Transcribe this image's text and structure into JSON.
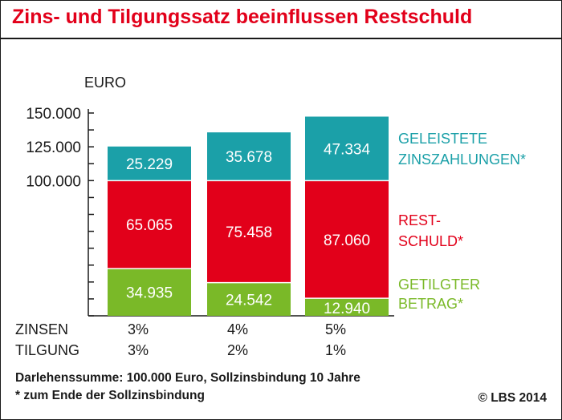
{
  "title": "Zins- und Tilgungssatz beeinflussen Restschuld",
  "footnotes": [
    "Darlehenssumme: 100.000 Euro, Sollzinsbindung 10 Jahre",
    "* zum Ende der Sollzinsbindung"
  ],
  "copyright": "© LBS 2014",
  "colors": {
    "title": "#e2001a",
    "teal": "#1ba0a8",
    "red": "#e2001a",
    "green": "#7ab928",
    "text": "#1a1a1a"
  },
  "chart_data": {
    "type": "bar",
    "stacked": true,
    "ylabel": "EURO",
    "ylim": [
      0,
      150000
    ],
    "yticks": [
      {
        "value": 150000,
        "label": "150.000"
      },
      {
        "value": 125000,
        "label": "125.000"
      },
      {
        "value": 100000,
        "label": "100.000"
      }
    ],
    "row_labels": [
      "ZINSEN",
      "TILGUNG"
    ],
    "categories": [
      {
        "zinsen": "3%",
        "tilgung": "3%"
      },
      {
        "zinsen": "4%",
        "tilgung": "2%"
      },
      {
        "zinsen": "5%",
        "tilgung": "1%"
      }
    ],
    "series": [
      {
        "name": "GETILGTER BETRAG*",
        "legend_lines": [
          "GETILGTER",
          "BETRAG*"
        ],
        "color": "#7ab928",
        "values": [
          34935,
          24542,
          12940
        ],
        "labels": [
          "34.935",
          "24.542",
          "12.940"
        ]
      },
      {
        "name": "REST-SCHULD*",
        "legend_lines": [
          "REST-",
          "SCHULD*"
        ],
        "color": "#e2001a",
        "values": [
          65065,
          75458,
          87060
        ],
        "labels": [
          "65.065",
          "75.458",
          "87.060"
        ]
      },
      {
        "name": "GELEISTETE ZINSZAHLUNGEN*",
        "legend_lines": [
          "GELEISTETE",
          "ZINSZAHLUNGEN*"
        ],
        "color": "#1ba0a8",
        "values": [
          25229,
          35678,
          47334
        ],
        "labels": [
          "25.229",
          "35.678",
          "47.334"
        ]
      }
    ]
  }
}
